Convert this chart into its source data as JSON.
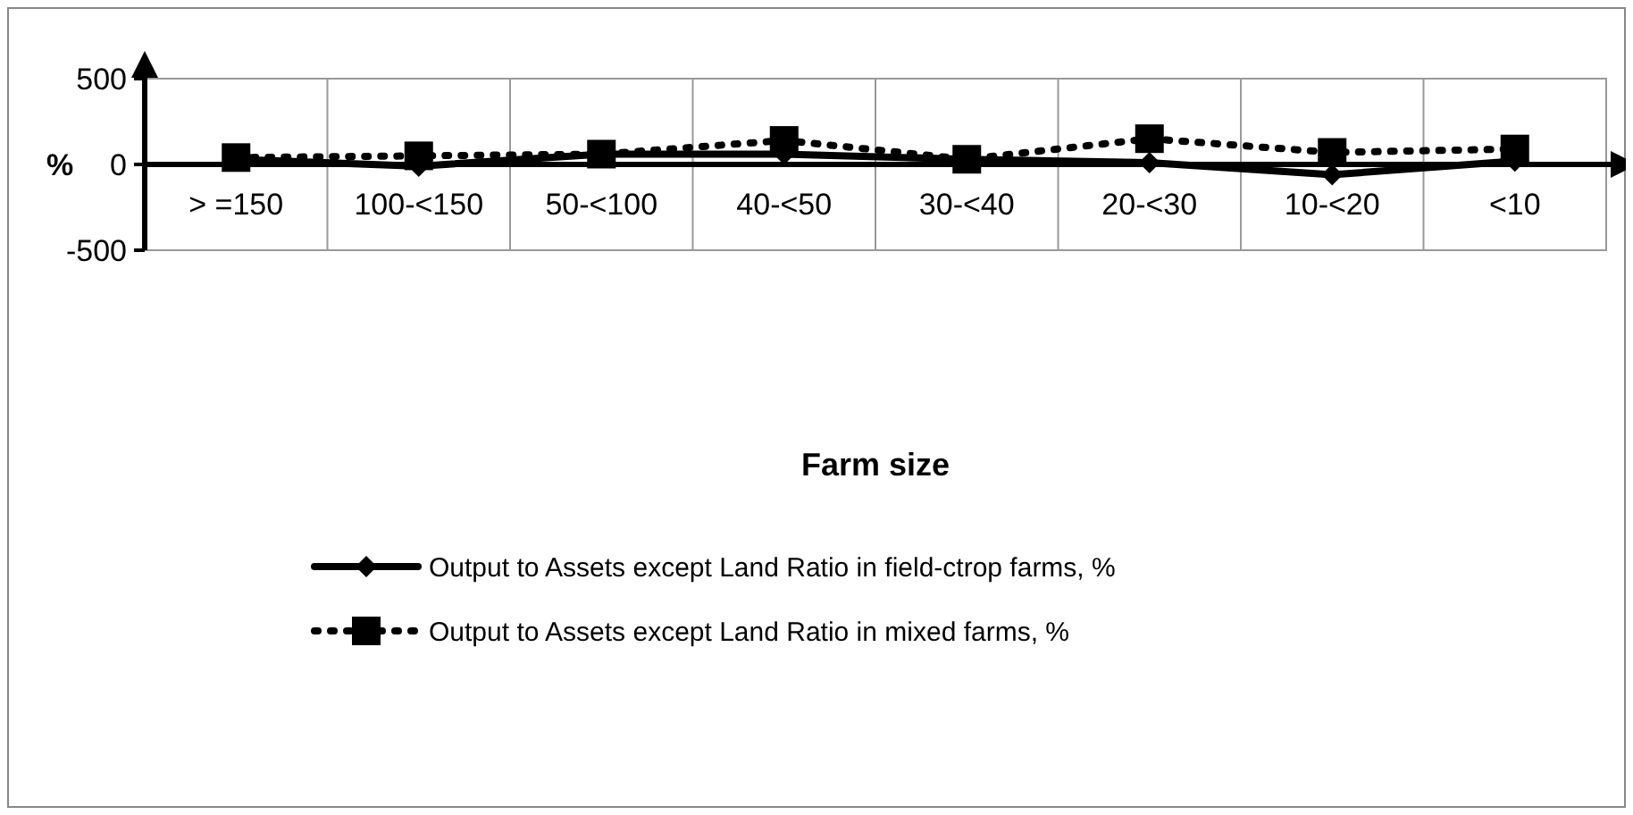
{
  "chart_data": {
    "type": "line",
    "annotations": [
      "Farm size"
    ],
    "ylabel": "%",
    "categories": [
      "> =150",
      "100-<150",
      "50-<100",
      "40-<50",
      "30-<40",
      "20-<30",
      "10-<20",
      "<10"
    ],
    "ylim": [
      -500,
      500
    ],
    "yticks": [
      -500,
      0,
      500
    ],
    "grid": "x",
    "legend": "bottom",
    "series": [
      {
        "name": "Output to Assets except Land Ratio in field-ctrop farms, %",
        "color": "#000000",
        "marker": "diamond",
        "line_style": "solid",
        "values": [
          30,
          -10,
          60,
          60,
          30,
          10,
          -60,
          20
        ]
      },
      {
        "name": "Output to Assets except Land Ratio in mixed farms, %",
        "color": "#000000",
        "marker": "square",
        "line_style": "dotted",
        "values": [
          40,
          50,
          60,
          140,
          30,
          150,
          70,
          90
        ]
      }
    ]
  }
}
